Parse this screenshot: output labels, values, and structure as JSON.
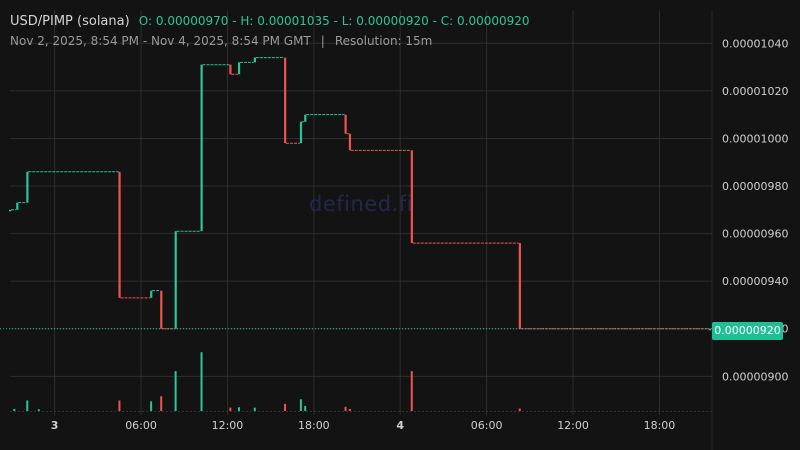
{
  "header": {
    "title": "USD/PIMP (solana)",
    "ohlc": "O: 0.00000970 - H: 0.00001035 - L: 0.00000920 - C: 0.00000920",
    "range": "Nov 2, 2025, 8:54 PM - Nov 4, 2025, 8:54 PM GMT",
    "separator": "|",
    "resolution": "Resolution: 15m"
  },
  "watermark": "defined.fi",
  "last_price": "0.00000920",
  "colors": {
    "background": "#131313",
    "up": "#2cc49b",
    "down": "#ef5350",
    "grid": "#2e2e2e",
    "badge": "#1fbf95"
  },
  "chart_data": {
    "type": "candlestick",
    "y_ticks": [
      "0.00000900",
      "0.00000920",
      "0.00000940",
      "0.00000960",
      "0.00000980",
      "0.00001000",
      "0.00001020",
      "0.00001040"
    ],
    "x_ticks": [
      {
        "label": "3",
        "hour": 3.1,
        "bold": true
      },
      {
        "label": "06:00",
        "hour": 9.1,
        "bold": false
      },
      {
        "label": "12:00",
        "hour": 15.1,
        "bold": false
      },
      {
        "label": "18:00",
        "hour": 21.1,
        "bold": false
      },
      {
        "label": "4",
        "hour": 27.1,
        "bold": true
      },
      {
        "label": "06:00",
        "hour": 33.1,
        "bold": false
      },
      {
        "label": "12:00",
        "hour": 39.1,
        "bold": false
      },
      {
        "label": "18:00",
        "hour": 45.1,
        "bold": false
      }
    ],
    "ylim": [
      8.85e-06,
      1.054e-05
    ],
    "xlim_hours": [
      0,
      48.75
    ],
    "candles": [
      {
        "h": 0.0,
        "o": 9.7e-06,
        "c": 9.7e-06
      },
      {
        "h": 0.5,
        "o": 9.7e-06,
        "c": 9.73e-06
      },
      {
        "h": 1.2,
        "o": 9.73e-06,
        "c": 9.86e-06
      },
      {
        "h": 7.6,
        "o": 9.86e-06,
        "c": 9.33e-06
      },
      {
        "h": 9.8,
        "o": 9.33e-06,
        "c": 9.36e-06
      },
      {
        "h": 10.5,
        "o": 9.36e-06,
        "c": 9.2e-06
      },
      {
        "h": 11.5,
        "o": 9.2e-06,
        "c": 9.61e-06
      },
      {
        "h": 13.3,
        "o": 9.61e-06,
        "c": 1.031e-05
      },
      {
        "h": 15.3,
        "o": 1.031e-05,
        "c": 1.027e-05
      },
      {
        "h": 15.9,
        "o": 1.027e-05,
        "c": 1.032e-05
      },
      {
        "h": 17.0,
        "o": 1.032e-05,
        "c": 1.034e-05
      },
      {
        "h": 19.1,
        "o": 1.034e-05,
        "c": 9.98e-06
      },
      {
        "h": 20.2,
        "o": 9.98e-06,
        "c": 1.007e-05
      },
      {
        "h": 20.5,
        "o": 1.007e-05,
        "c": 1.01e-05
      },
      {
        "h": 23.3,
        "o": 1.01e-05,
        "c": 1.002e-05
      },
      {
        "h": 23.6,
        "o": 1.002e-05,
        "c": 9.95e-06
      },
      {
        "h": 27.9,
        "o": 9.95e-06,
        "c": 9.56e-06
      },
      {
        "h": 35.4,
        "o": 9.56e-06,
        "c": 9.2e-06
      },
      {
        "h": 48.6,
        "o": 9.2e-06,
        "c": 9.2e-06
      }
    ],
    "volume_bars": [
      {
        "h": 0.3,
        "v": 0.5,
        "up": true
      },
      {
        "h": 1.2,
        "v": 2.5,
        "up": true
      },
      {
        "h": 2.0,
        "v": 0.4,
        "up": true
      },
      {
        "h": 7.6,
        "v": 2.5,
        "up": false
      },
      {
        "h": 9.8,
        "v": 2.3,
        "up": true
      },
      {
        "h": 10.5,
        "v": 3.5,
        "up": false
      },
      {
        "h": 11.5,
        "v": 9.5,
        "up": true
      },
      {
        "h": 13.3,
        "v": 14.0,
        "up": true
      },
      {
        "h": 15.3,
        "v": 0.8,
        "up": false
      },
      {
        "h": 15.9,
        "v": 0.9,
        "up": true
      },
      {
        "h": 17.0,
        "v": 0.8,
        "up": true
      },
      {
        "h": 19.1,
        "v": 1.7,
        "up": false
      },
      {
        "h": 20.2,
        "v": 2.8,
        "up": true
      },
      {
        "h": 20.5,
        "v": 1.2,
        "up": true
      },
      {
        "h": 23.3,
        "v": 1.0,
        "up": false
      },
      {
        "h": 23.6,
        "v": 0.5,
        "up": false
      },
      {
        "h": 27.9,
        "v": 9.5,
        "up": false
      },
      {
        "h": 35.4,
        "v": 0.6,
        "up": false
      }
    ],
    "grid": true
  }
}
